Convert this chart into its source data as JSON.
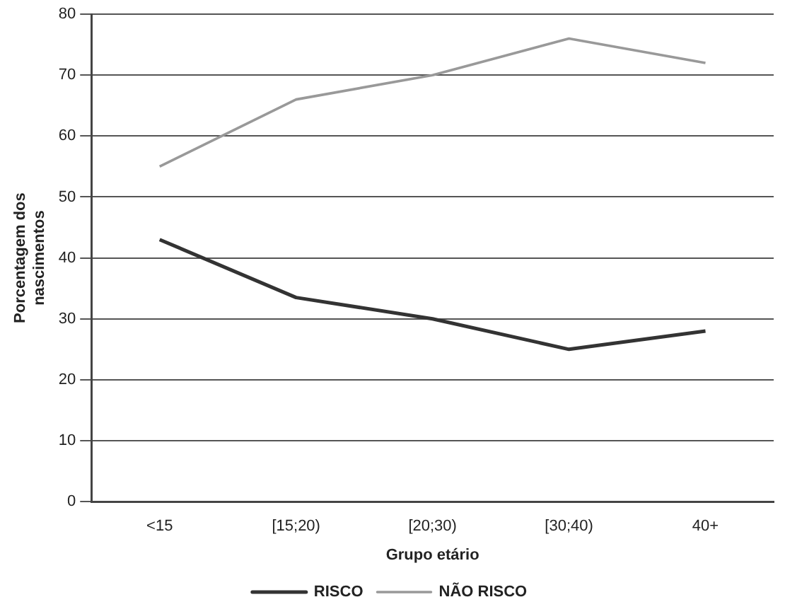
{
  "chart_data": {
    "type": "line",
    "xlabel": "Grupo etário",
    "ylabel": "Porcentagem dos nascimentos",
    "categories": [
      "<15",
      "[15;20)",
      "[20;30)",
      "[30;40)",
      "40+"
    ],
    "series": [
      {
        "name": "RISCO",
        "color": "#333333",
        "values": [
          43,
          33.5,
          30,
          25,
          28
        ]
      },
      {
        "name": "NÃO RISCO",
        "color": "#999999",
        "values": [
          55,
          66,
          70,
          76,
          72
        ]
      }
    ],
    "ylim": [
      0,
      80
    ],
    "yticks": [
      0,
      10,
      20,
      30,
      40,
      50,
      60,
      70,
      80
    ],
    "grid": "y",
    "legend": "bottom",
    "marker": "none",
    "line_style": "solid"
  }
}
